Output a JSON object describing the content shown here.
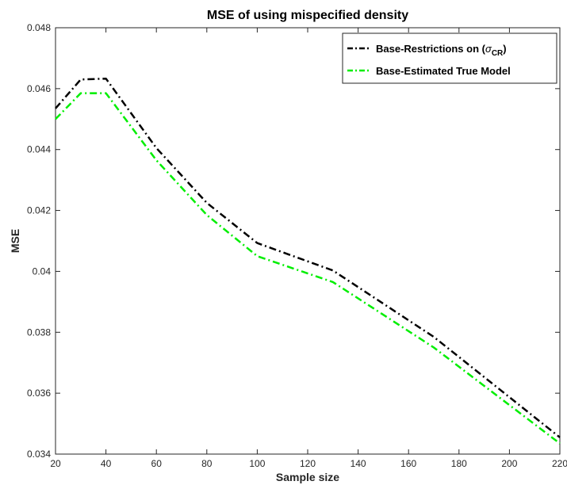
{
  "chart_data": {
    "type": "line",
    "title": "MSE of using mispecified density",
    "xlabel": "Sample size",
    "ylabel": "MSE",
    "xlim": [
      20,
      220
    ],
    "ylim": [
      0.034,
      0.048
    ],
    "xticks": [
      20,
      40,
      60,
      80,
      100,
      120,
      140,
      160,
      180,
      200,
      220
    ],
    "yticks": [
      0.034,
      0.036,
      0.038,
      0.04,
      0.042,
      0.044,
      0.046,
      0.048
    ],
    "ytick_labels": [
      "0.034",
      "0.036",
      "0.038",
      "0.04",
      "0.042",
      "0.044",
      "0.046",
      "0.048"
    ],
    "grid": false,
    "legend_position": "top-right",
    "x": [
      20,
      30,
      40,
      60,
      80,
      100,
      130,
      170,
      220
    ],
    "series": [
      {
        "name": "Base-Restrictions on (σCR)",
        "name_prefix": "Base-Restrictions on (",
        "name_sym": "σ",
        "name_sub": "CR",
        "name_suffix": ")",
        "color": "#000000",
        "style": "dash-dot",
        "values": [
          0.04535,
          0.0463,
          0.04633,
          0.04405,
          0.04225,
          0.04093,
          0.04003,
          0.03785,
          0.03455
        ]
      },
      {
        "name": "Base-Estimated True Model",
        "color": "#00ee00",
        "style": "dash-dot",
        "values": [
          0.045,
          0.04585,
          0.04585,
          0.04365,
          0.04185,
          0.0405,
          0.03965,
          0.0375,
          0.03435
        ]
      }
    ]
  }
}
